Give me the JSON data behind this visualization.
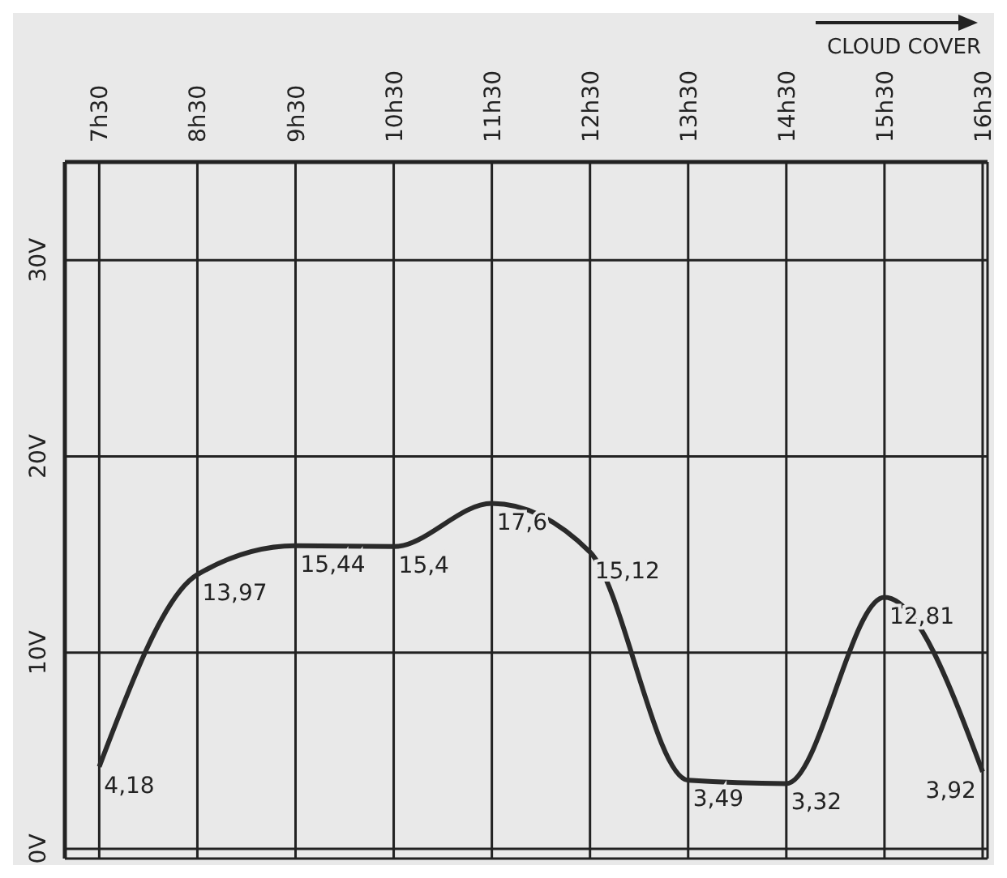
{
  "chart_data": {
    "type": "line",
    "categories": [
      "7h30",
      "8h30",
      "9h30",
      "10h30",
      "11h30",
      "12h30",
      "13h30",
      "14h30",
      "15h30",
      "16h30"
    ],
    "values": [
      4.18,
      13.97,
      15.44,
      15.4,
      17.6,
      15.12,
      3.49,
      3.32,
      12.81,
      3.92
    ],
    "value_labels": [
      "4,18",
      "13,97",
      "15,44",
      "15,4",
      "17,6",
      "15,12",
      "3,49",
      "3,32",
      "12,81",
      "3,92"
    ],
    "color": "#2a2a2a",
    "ylim": [
      -0.5,
      35
    ],
    "yticks": [
      {
        "value": 0,
        "label": "0V"
      },
      {
        "value": 10,
        "label": "10V"
      },
      {
        "value": 20,
        "label": "20V"
      },
      {
        "value": 30,
        "label": "30V"
      }
    ],
    "annotations": [
      "CLOUD COVER"
    ],
    "grid": true,
    "marker": "none",
    "line_style": "solid"
  }
}
